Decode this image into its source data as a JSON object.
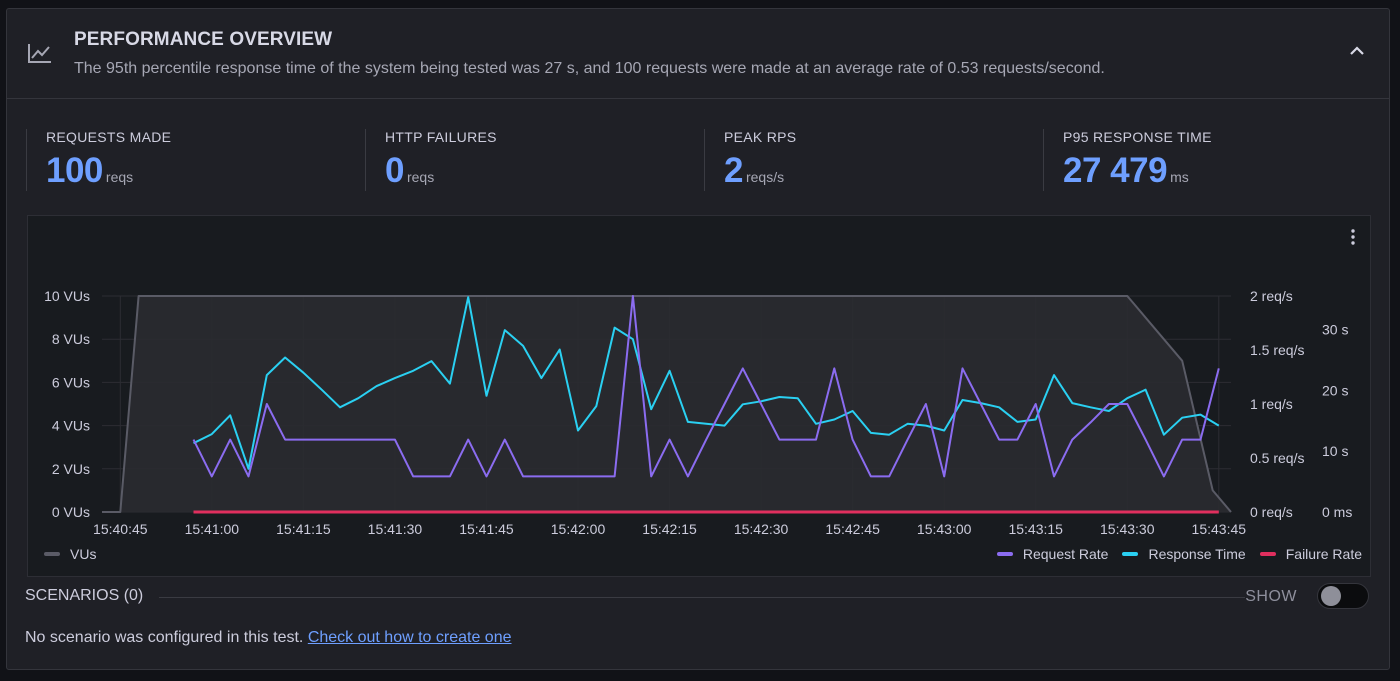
{
  "header": {
    "title": "PERFORMANCE OVERVIEW",
    "subtitle": "The 95th percentile response time of the system being tested was 27 s, and 100 requests were made at an average rate of 0.53 requests/second."
  },
  "stats": [
    {
      "label": "REQUESTS MADE",
      "value": "100",
      "unit": "reqs"
    },
    {
      "label": "HTTP FAILURES",
      "value": "0",
      "unit": "reqs"
    },
    {
      "label": "PEAK RPS",
      "value": "2",
      "unit": "reqs/s"
    },
    {
      "label": "P95 RESPONSE TIME",
      "value": "27 479",
      "unit": "ms"
    }
  ],
  "legend": {
    "vus": "VUs",
    "request_rate": "Request Rate",
    "response_time": "Response Time",
    "failure_rate": "Failure Rate"
  },
  "colors": {
    "vus": "#5a5b66",
    "request_rate": "#8b6cf0",
    "response_time": "#2ad0f2",
    "failure_rate": "#e02f5e",
    "accent": "#6e9fff"
  },
  "chart_data": {
    "type": "line",
    "x_ticks": [
      "15:40:45",
      "15:41:00",
      "15:41:15",
      "15:41:30",
      "15:41:45",
      "15:42:00",
      "15:42:15",
      "15:42:30",
      "15:42:45",
      "15:43:00",
      "15:43:15",
      "15:43:30",
      "15:43:45"
    ],
    "x_range": [
      "15:40:42",
      "15:43:47"
    ],
    "y_left": {
      "label": "VUs",
      "ticks": [
        "0 VUs",
        "2 VUs",
        "4 VUs",
        "6 VUs",
        "8 VUs",
        "10 VUs"
      ],
      "range": [
        0,
        10
      ]
    },
    "y_rps": {
      "ticks": [
        "0 req/s",
        "0.5 req/s",
        "1 req/s",
        "1.5 req/s",
        "2 req/s"
      ],
      "range": [
        0,
        2
      ]
    },
    "y_time": {
      "ticks": [
        "0 ms",
        "10 s",
        "20 s",
        "30 s"
      ],
      "range": [
        0,
        35.5
      ]
    },
    "series": [
      {
        "name": "VUs",
        "axis": "vus",
        "x": [
          "15:40:42",
          "15:40:45",
          "15:40:48",
          "15:43:30",
          "15:43:39",
          "15:43:44",
          "15:43:47"
        ],
        "y": [
          0,
          0,
          10,
          10,
          7,
          1,
          0
        ]
      },
      {
        "name": "Request Rate",
        "axis": "rps",
        "x": [
          "15:40:57",
          "15:41:00",
          "15:41:03",
          "15:41:06",
          "15:41:09",
          "15:41:12",
          "15:41:15",
          "15:41:18",
          "15:41:21",
          "15:41:24",
          "15:41:27",
          "15:41:30",
          "15:41:33",
          "15:41:36",
          "15:41:39",
          "15:41:42",
          "15:41:45",
          "15:41:48",
          "15:41:51",
          "15:41:54",
          "15:41:57",
          "15:42:00",
          "15:42:03",
          "15:42:06",
          "15:42:09",
          "15:42:12",
          "15:42:15",
          "15:42:18",
          "15:42:21",
          "15:42:24",
          "15:42:27",
          "15:42:30",
          "15:42:33",
          "15:42:36",
          "15:42:39",
          "15:42:42",
          "15:42:45",
          "15:42:48",
          "15:42:51",
          "15:42:54",
          "15:42:57",
          "15:43:00",
          "15:43:03",
          "15:43:06",
          "15:43:09",
          "15:43:12",
          "15:43:15",
          "15:43:18",
          "15:43:21",
          "15:43:24",
          "15:43:27",
          "15:43:30",
          "15:43:33",
          "15:43:36",
          "15:43:39",
          "15:43:42",
          "15:43:45"
        ],
        "y": [
          0.67,
          0.33,
          0.67,
          0.33,
          1,
          0.67,
          0.67,
          0.67,
          0.67,
          0.67,
          0.67,
          0.67,
          0.33,
          0.33,
          0.33,
          0.67,
          0.33,
          0.67,
          0.33,
          0.33,
          0.33,
          0.33,
          0.33,
          0.33,
          2,
          0.33,
          0.67,
          0.33,
          0.67,
          1,
          1.33,
          1,
          0.67,
          0.67,
          0.67,
          1.33,
          0.67,
          0.33,
          0.33,
          0.67,
          1,
          0.33,
          1.33,
          1,
          0.67,
          0.67,
          1,
          0.33,
          0.67,
          0.83,
          1,
          1,
          0.67,
          0.33,
          0.67,
          0.67,
          1.33
        ]
      },
      {
        "name": "Response Time",
        "axis": "time",
        "x": [
          "15:40:57",
          "15:41:00",
          "15:41:03",
          "15:41:06",
          "15:41:09",
          "15:41:12",
          "15:41:15",
          "15:41:18",
          "15:41:21",
          "15:41:24",
          "15:41:27",
          "15:41:30",
          "15:41:33",
          "15:41:36",
          "15:41:39",
          "15:41:42",
          "15:41:45",
          "15:41:48",
          "15:41:51",
          "15:41:54",
          "15:41:57",
          "15:42:00",
          "15:42:03",
          "15:42:06",
          "15:42:09",
          "15:42:12",
          "15:42:15",
          "15:42:18",
          "15:42:21",
          "15:42:24",
          "15:42:27",
          "15:42:30",
          "15:42:33",
          "15:42:36",
          "15:42:39",
          "15:42:42",
          "15:42:45",
          "15:42:48",
          "15:42:51",
          "15:42:54",
          "15:42:57",
          "15:43:00",
          "15:43:03",
          "15:43:06",
          "15:43:09",
          "15:43:12",
          "15:43:15",
          "15:43:18",
          "15:43:21",
          "15:43:24",
          "15:43:27",
          "15:43:30",
          "15:43:33",
          "15:43:36",
          "15:43:39",
          "15:43:42",
          "15:43:45"
        ],
        "y": [
          11.3,
          12.8,
          15.9,
          7.1,
          22.5,
          25.4,
          22.9,
          20.1,
          17.2,
          18.7,
          20.7,
          22.0,
          23.2,
          24.8,
          21.1,
          35.3,
          19.1,
          29.9,
          27.3,
          22.0,
          26.7,
          13.4,
          17.4,
          30.3,
          28.4,
          16.9,
          23.2,
          14.8,
          14.5,
          14.2,
          17.7,
          18.2,
          18.9,
          18.7,
          14.5,
          15.2,
          16.6,
          13.0,
          12.7,
          14.5,
          14.2,
          13.4,
          18.4,
          17.9,
          17.2,
          14.8,
          15.2,
          22.5,
          17.9,
          17.2,
          16.6,
          18.7,
          20.1,
          12.7,
          15.5,
          16.0,
          14.2
        ]
      },
      {
        "name": "Failure Rate",
        "axis": "rps",
        "x": [
          "15:40:57",
          "15:43:45"
        ],
        "y": [
          0,
          0
        ]
      }
    ]
  },
  "scenarios": {
    "title": "SCENARIOS (0)",
    "show_label": "SHOW",
    "toggle_on": false,
    "empty_text": "No scenario was configured in this test.",
    "link_text": "Check out how to create one"
  }
}
